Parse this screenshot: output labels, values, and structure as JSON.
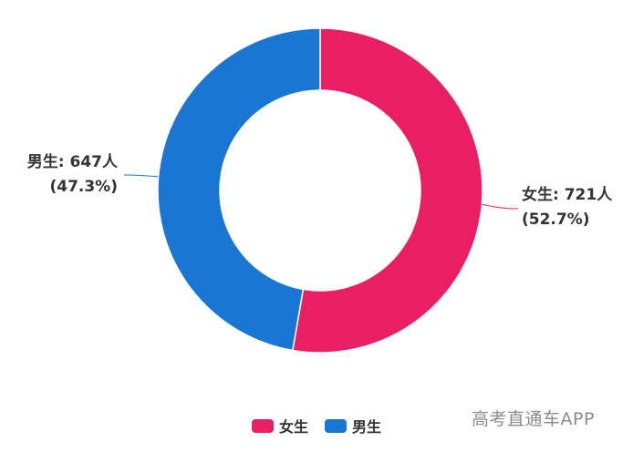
{
  "chart_data": {
    "type": "pie",
    "donut": true,
    "categories": [
      "女生",
      "男生"
    ],
    "values": [
      721,
      647
    ],
    "percents": [
      "52.7%",
      "47.3%"
    ],
    "unit": "人",
    "colors": [
      "#e91e63",
      "#1976d2"
    ],
    "legend_position": "bottom-center",
    "labels": [
      {
        "line1": "女生: 721人",
        "line2": "(52.7%)"
      },
      {
        "line1": "男生: 647人",
        "line2": "(47.3%)"
      }
    ]
  },
  "legend": {
    "items": [
      {
        "label": "女生",
        "color": "#e91e63"
      },
      {
        "label": "男生",
        "color": "#1976d2"
      }
    ]
  },
  "watermark": "高考直通车APP"
}
